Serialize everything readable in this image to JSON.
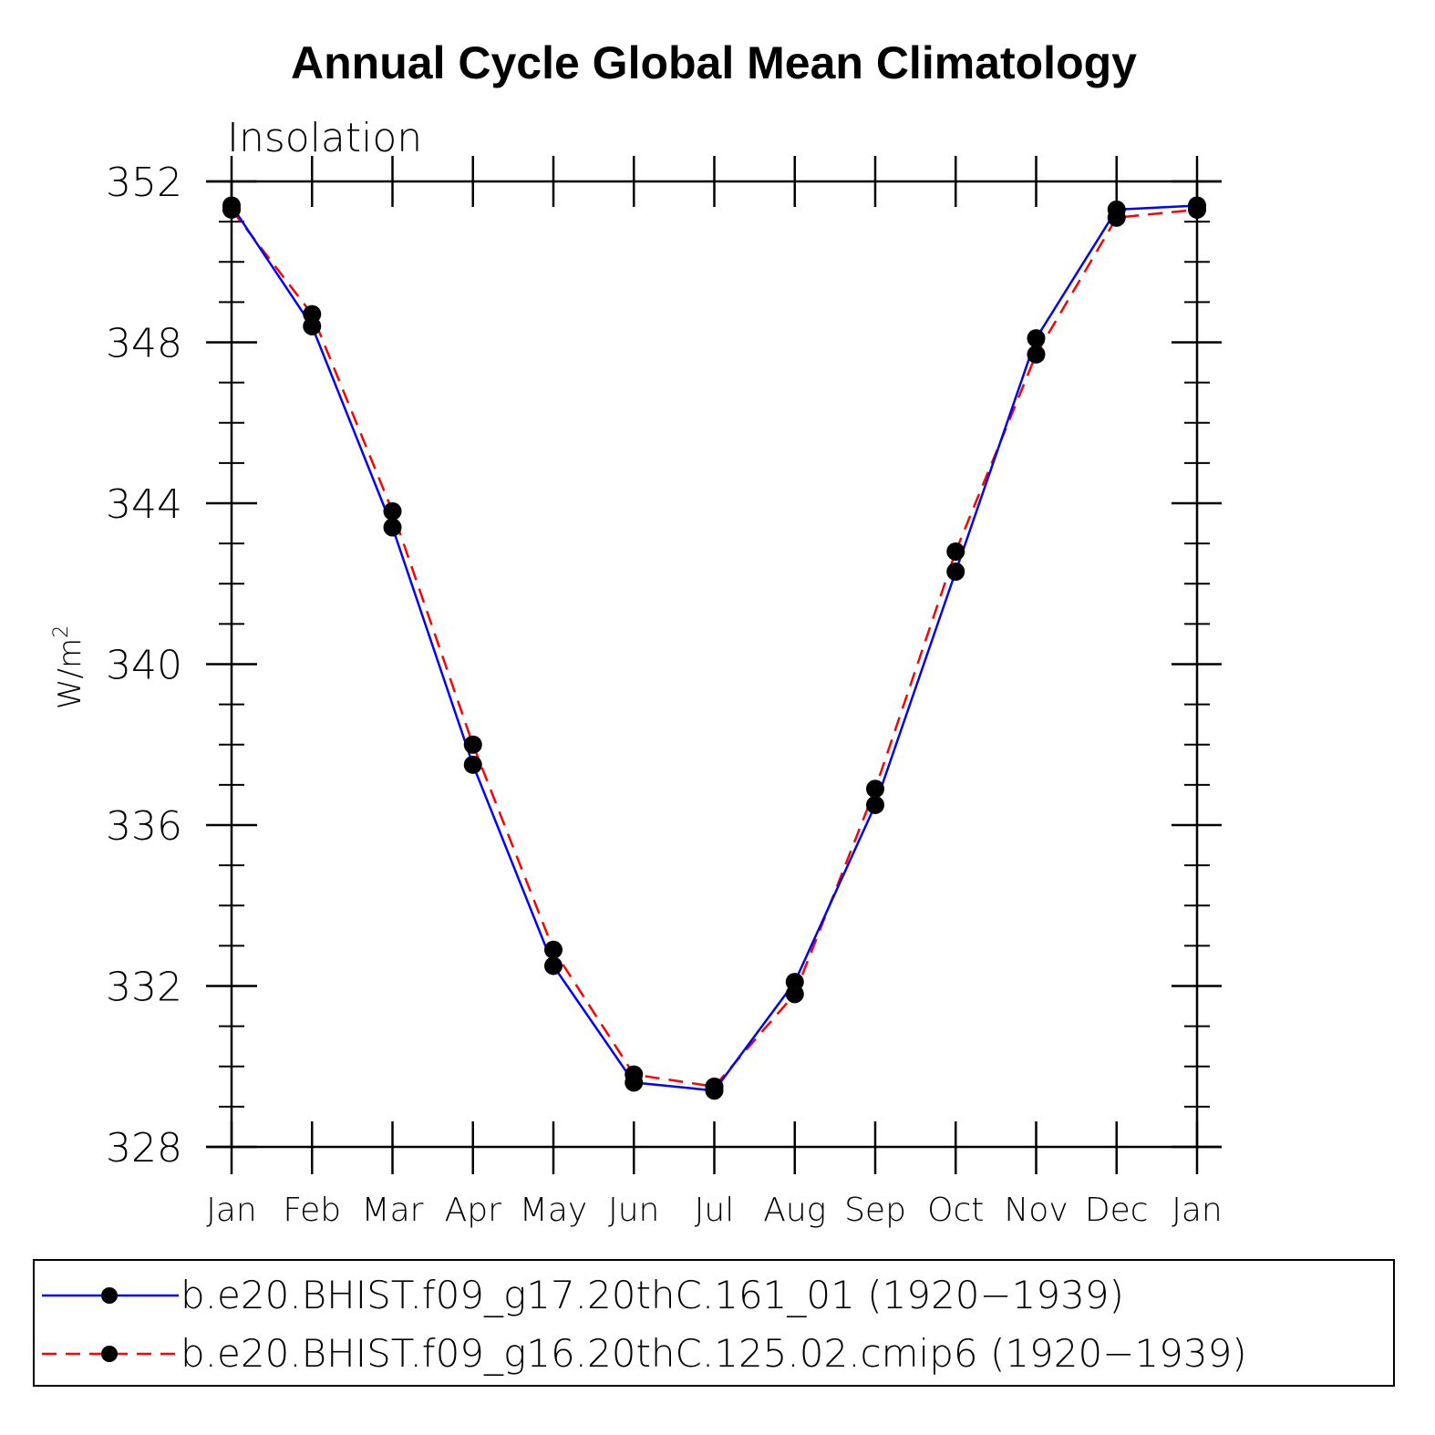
{
  "chart_data": {
    "type": "line",
    "title": "Annual Cycle Global Mean Climatology",
    "subtitle": "Insolation",
    "ylabel": "W/m",
    "ylabel_superscript": "2",
    "xlabel": "",
    "categories": [
      "Jan",
      "Feb",
      "Mar",
      "Apr",
      "May",
      "Jun",
      "Jul",
      "Aug",
      "Sep",
      "Oct",
      "Nov",
      "Dec",
      "Jan"
    ],
    "ylim": [
      328,
      352
    ],
    "yticks": [
      "328",
      "332",
      "336",
      "340",
      "344",
      "348",
      "352"
    ],
    "series": [
      {
        "name": "b.e20.BHIST.f09_g17.20thC.161_01 (1920−1939)",
        "color": "#0000ff",
        "dash": "solid",
        "values": [
          351.4,
          348.4,
          343.4,
          337.5,
          332.5,
          329.6,
          329.4,
          332.1,
          336.5,
          342.3,
          348.1,
          351.3,
          351.4
        ]
      },
      {
        "name": "b.e20.BHIST.f09_g16.20thC.125.02.cmip6 (1920−1939)",
        "color": "#ff0000",
        "dash": "dashed",
        "values": [
          351.3,
          348.7,
          343.8,
          338.0,
          332.9,
          329.8,
          329.5,
          331.8,
          336.9,
          342.8,
          347.7,
          351.1,
          351.3
        ]
      }
    ]
  }
}
